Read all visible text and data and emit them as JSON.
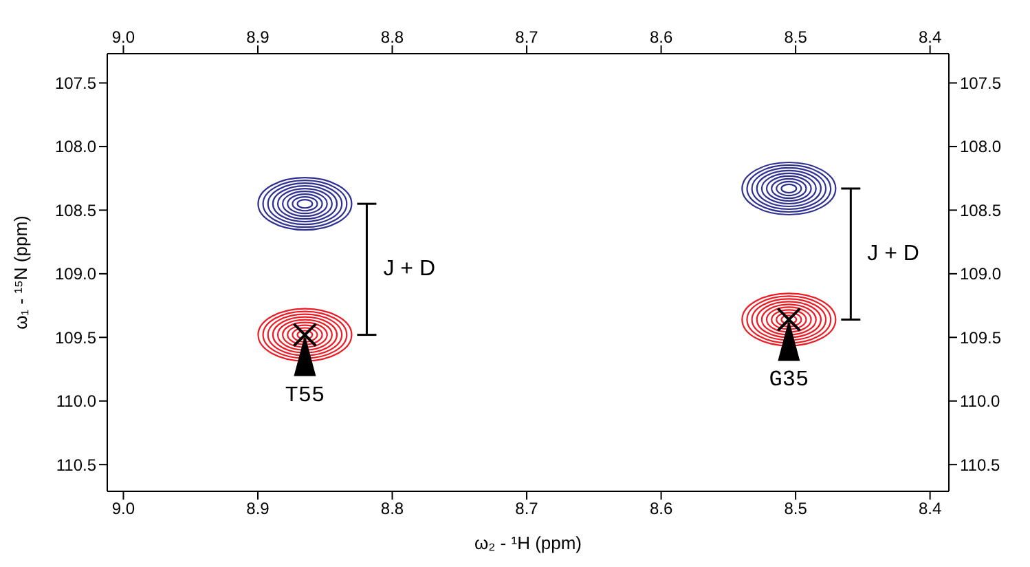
{
  "chart_data": {
    "type": "scatter",
    "xlabel": "ω₂ - ¹H  (ppm)",
    "ylabel": "ω₁ - ¹⁵N (ppm)",
    "xlim": [
      9.012,
      8.386
    ],
    "ylim": [
      110.71,
      107.27
    ],
    "xticks": [
      {
        "value": 9,
        "label": "9.0"
      },
      8.9,
      8.8,
      8.7,
      8.6,
      8.5,
      {
        "value": 8.4,
        "label": "8.4"
      }
    ],
    "x2lim": [
      9.012,
      8.386
    ],
    "x2ticks": [
      {
        "value": 9,
        "label": "9.0"
      },
      8.9,
      8.8,
      8.7,
      8.6,
      8.5,
      {
        "value": 8.4,
        "label": "8.4"
      }
    ],
    "yticks": [
      107.5,
      {
        "value": 108,
        "label": "108.0"
      },
      108.5,
      {
        "value": 109,
        "label": "109.0"
      },
      109.5,
      {
        "value": 110,
        "label": "110.0"
      },
      110.5
    ],
    "y2lim": [
      110.71,
      107.27
    ],
    "y2ticks": [
      107.5,
      {
        "value": 108,
        "label": "108.0"
      },
      108.5,
      {
        "value": 109,
        "label": "109.0"
      },
      109.5,
      {
        "value": 110,
        "label": "110.0"
      },
      110.5
    ],
    "x": [
      8.865,
      8.505
    ],
    "series": [
      {
        "color": "#2e3192",
        "values": [
          108.45,
          108.33
        ]
      },
      {
        "color": "#ed1c24",
        "values": [
          109.48,
          109.36
        ]
      }
    ],
    "annotations": [
      "J + D",
      "J + D",
      "T55",
      "G35"
    ],
    "legend": false,
    "marker": "circle"
  }
}
